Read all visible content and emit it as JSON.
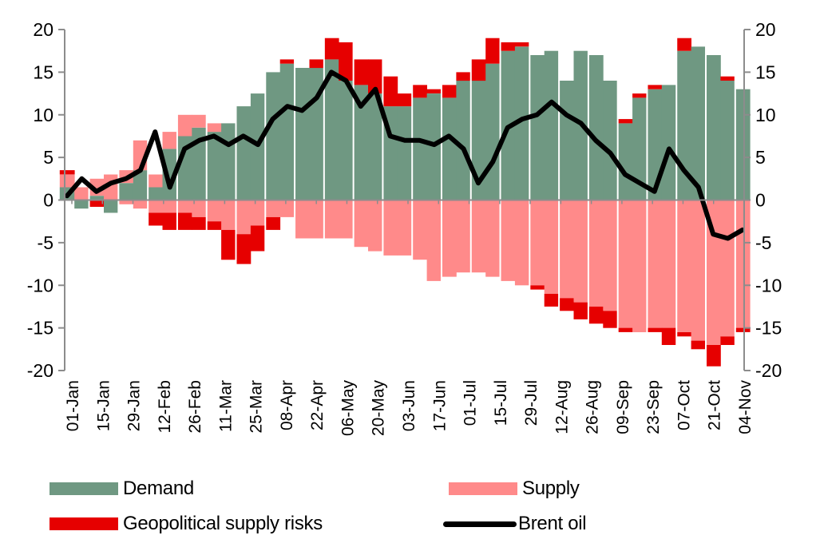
{
  "chart_data": {
    "type": "bar",
    "subtype": "stacked bar with line overlay",
    "title": "",
    "xlabel": "",
    "ylabel": "",
    "ylim": [
      -20,
      20
    ],
    "y_ticks": [
      "20",
      "15",
      "10",
      "5",
      "0",
      "-5",
      "-10",
      "-15",
      "-20"
    ],
    "y_tick_values": [
      20,
      15,
      10,
      5,
      0,
      -5,
      -10,
      -15,
      -20
    ],
    "y2_ticks": [
      "20",
      "15",
      "10",
      "5",
      "0",
      "-5",
      "-10",
      "-15",
      "-20"
    ],
    "x_tick_labels": [
      "01-Jan",
      "15-Jan",
      "29-Jan",
      "12-Feb",
      "26-Feb",
      "11-Mar",
      "25-Mar",
      "08-Apr",
      "22-Apr",
      "06-May",
      "20-May",
      "03-Jun",
      "17-Jun",
      "01-Jul",
      "15-Jul",
      "29-Jul",
      "12-Aug",
      "26-Aug",
      "09-Sep",
      "23-Sep",
      "07-Oct",
      "21-Oct",
      "04-Nov"
    ],
    "grid": false,
    "legend_placement": "bottom",
    "colors": {
      "demand": "#6f9882",
      "supply": "#ff8a8a",
      "geopolitical": "#e60000",
      "brent": "#000000",
      "axis": "#8c8c8c"
    },
    "series": [
      {
        "name": "Demand",
        "values": [
          1.5,
          -1.0,
          0.5,
          -1.5,
          2.0,
          3.5,
          1.5,
          6.0,
          7.5,
          8.5,
          8.0,
          9.0,
          11.0,
          12.5,
          15.0,
          16.0,
          15.5,
          15.5,
          16.5,
          14.0,
          13.5,
          12.5,
          11.0,
          11.0,
          12.0,
          12.5,
          12.0,
          14.0,
          14.0,
          16.0,
          17.5,
          18.0,
          17.0,
          17.5,
          14.0,
          17.5,
          17.0,
          14.0,
          9.0,
          12.0,
          13.0,
          13.5,
          17.5,
          18.0,
          17.0,
          14.0,
          13.0
        ]
      },
      {
        "name": "Supply",
        "values": [
          1.5,
          1.5,
          2.0,
          3.0,
          1.5,
          3.5,
          1.5,
          2.0,
          2.5,
          1.5,
          1.0,
          0,
          0,
          0,
          0,
          0,
          0,
          0,
          0,
          0,
          0,
          0,
          0,
          0,
          0,
          0,
          0,
          0,
          0,
          0,
          0,
          0,
          0,
          0,
          0,
          0,
          0,
          0,
          0,
          0,
          0,
          0,
          0,
          0,
          0,
          0,
          0
        ]
      },
      {
        "name": "Geopolitical supply risks",
        "values": [
          0.5,
          0,
          0,
          0,
          0,
          0,
          0,
          0,
          0,
          0,
          0,
          0,
          0,
          0,
          0,
          0.5,
          0,
          1.0,
          2.5,
          4.5,
          3.0,
          4.0,
          3.5,
          1.5,
          1.5,
          0.5,
          1.5,
          1.0,
          2.5,
          3.0,
          1.0,
          0.5,
          0,
          0,
          0,
          0,
          0,
          0,
          0.5,
          0.5,
          0.5,
          0,
          1.5,
          0,
          0,
          0.5,
          0
        ]
      },
      {
        "name": "Supply (negative)",
        "values": [
          0,
          0,
          0,
          0,
          -0.5,
          -1.0,
          -1.5,
          -1.5,
          -1.5,
          -2.0,
          -2.5,
          -3.5,
          -4.0,
          -3.0,
          -2.0,
          -2.0,
          -4.5,
          -4.5,
          -4.5,
          -4.5,
          -5.5,
          -6.0,
          -6.5,
          -6.5,
          -7.0,
          -9.5,
          -9.0,
          -8.5,
          -8.5,
          -9.0,
          -9.5,
          -10.0,
          -10.0,
          -11.0,
          -11.5,
          -12.0,
          -12.5,
          -13.0,
          -15.0,
          -15.5,
          -15.0,
          -15.0,
          -15.5,
          -16.5,
          -17.0,
          -16.0,
          -15.0
        ]
      },
      {
        "name": "Geopolitical supply risks (negative)",
        "values": [
          0,
          0,
          -0.8,
          0,
          0,
          0,
          -1.5,
          -2.0,
          -2.0,
          -1.5,
          -1.0,
          -3.5,
          -3.5,
          -3.0,
          -1.5,
          0,
          0,
          0,
          0,
          0,
          0,
          0,
          0,
          0,
          0,
          0,
          0,
          0,
          0,
          0,
          0,
          0,
          -0.5,
          -1.5,
          -1.5,
          -2.0,
          -2.0,
          -2.0,
          -0.5,
          0,
          -0.5,
          -2.0,
          -0.5,
          -1.0,
          -2.5,
          -1.0,
          -0.5
        ]
      },
      {
        "name": "Brent oil",
        "type": "line",
        "values": [
          0.5,
          2.5,
          1.0,
          2.0,
          2.5,
          3.5,
          8.0,
          1.5,
          6.0,
          7.0,
          7.5,
          6.5,
          7.5,
          6.5,
          9.5,
          11.0,
          10.5,
          12.0,
          15.0,
          14.0,
          11.0,
          13.0,
          7.5,
          7.0,
          7.0,
          6.5,
          7.5,
          6.0,
          2.0,
          4.5,
          8.5,
          9.5,
          10.0,
          11.5,
          10.0,
          9.0,
          7.0,
          5.5,
          3.0,
          2.0,
          1.0,
          6.0,
          3.5,
          1.5,
          -4.0,
          -4.5,
          -3.5
        ]
      }
    ]
  },
  "legend": {
    "items": [
      {
        "label": "Demand",
        "color": "#6f9882"
      },
      {
        "label": "Supply",
        "color": "#ff8a8a"
      },
      {
        "label": "Geopolitical supply risks",
        "color": "#e60000"
      },
      {
        "label": "Brent oil",
        "color": "#000000"
      }
    ]
  }
}
